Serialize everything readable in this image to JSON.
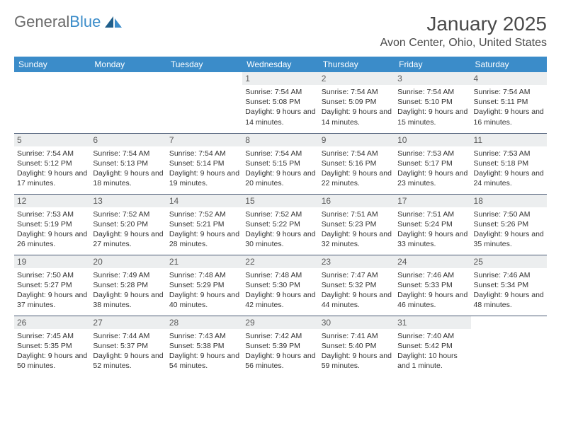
{
  "logo": {
    "textGray": "General",
    "textBlue": "Blue"
  },
  "title": "January 2025",
  "location": "Avon Center, Ohio, United States",
  "colors": {
    "headerBg": "#3b8cc9",
    "headerText": "#ffffff",
    "dayNumBg": "#eceeef",
    "cellText": "#333333",
    "borderColor": "#4a5a75",
    "logoGray": "#6b6b6b",
    "logoBlue": "#3b8cc9",
    "pageBg": "#ffffff"
  },
  "typography": {
    "titleFontSize": 28,
    "locationFontSize": 16,
    "weekdayFontSize": 12,
    "dayNumFontSize": 12,
    "cellFontSize": 10.5
  },
  "weekdays": [
    "Sunday",
    "Monday",
    "Tuesday",
    "Wednesday",
    "Thursday",
    "Friday",
    "Saturday"
  ],
  "weeks": [
    [
      null,
      null,
      null,
      {
        "n": "1",
        "sr": "7:54 AM",
        "ss": "5:08 PM",
        "dl": "9 hours and 14 minutes."
      },
      {
        "n": "2",
        "sr": "7:54 AM",
        "ss": "5:09 PM",
        "dl": "9 hours and 14 minutes."
      },
      {
        "n": "3",
        "sr": "7:54 AM",
        "ss": "5:10 PM",
        "dl": "9 hours and 15 minutes."
      },
      {
        "n": "4",
        "sr": "7:54 AM",
        "ss": "5:11 PM",
        "dl": "9 hours and 16 minutes."
      }
    ],
    [
      {
        "n": "5",
        "sr": "7:54 AM",
        "ss": "5:12 PM",
        "dl": "9 hours and 17 minutes."
      },
      {
        "n": "6",
        "sr": "7:54 AM",
        "ss": "5:13 PM",
        "dl": "9 hours and 18 minutes."
      },
      {
        "n": "7",
        "sr": "7:54 AM",
        "ss": "5:14 PM",
        "dl": "9 hours and 19 minutes."
      },
      {
        "n": "8",
        "sr": "7:54 AM",
        "ss": "5:15 PM",
        "dl": "9 hours and 20 minutes."
      },
      {
        "n": "9",
        "sr": "7:54 AM",
        "ss": "5:16 PM",
        "dl": "9 hours and 22 minutes."
      },
      {
        "n": "10",
        "sr": "7:53 AM",
        "ss": "5:17 PM",
        "dl": "9 hours and 23 minutes."
      },
      {
        "n": "11",
        "sr": "7:53 AM",
        "ss": "5:18 PM",
        "dl": "9 hours and 24 minutes."
      }
    ],
    [
      {
        "n": "12",
        "sr": "7:53 AM",
        "ss": "5:19 PM",
        "dl": "9 hours and 26 minutes."
      },
      {
        "n": "13",
        "sr": "7:52 AM",
        "ss": "5:20 PM",
        "dl": "9 hours and 27 minutes."
      },
      {
        "n": "14",
        "sr": "7:52 AM",
        "ss": "5:21 PM",
        "dl": "9 hours and 28 minutes."
      },
      {
        "n": "15",
        "sr": "7:52 AM",
        "ss": "5:22 PM",
        "dl": "9 hours and 30 minutes."
      },
      {
        "n": "16",
        "sr": "7:51 AM",
        "ss": "5:23 PM",
        "dl": "9 hours and 32 minutes."
      },
      {
        "n": "17",
        "sr": "7:51 AM",
        "ss": "5:24 PM",
        "dl": "9 hours and 33 minutes."
      },
      {
        "n": "18",
        "sr": "7:50 AM",
        "ss": "5:26 PM",
        "dl": "9 hours and 35 minutes."
      }
    ],
    [
      {
        "n": "19",
        "sr": "7:50 AM",
        "ss": "5:27 PM",
        "dl": "9 hours and 37 minutes."
      },
      {
        "n": "20",
        "sr": "7:49 AM",
        "ss": "5:28 PM",
        "dl": "9 hours and 38 minutes."
      },
      {
        "n": "21",
        "sr": "7:48 AM",
        "ss": "5:29 PM",
        "dl": "9 hours and 40 minutes."
      },
      {
        "n": "22",
        "sr": "7:48 AM",
        "ss": "5:30 PM",
        "dl": "9 hours and 42 minutes."
      },
      {
        "n": "23",
        "sr": "7:47 AM",
        "ss": "5:32 PM",
        "dl": "9 hours and 44 minutes."
      },
      {
        "n": "24",
        "sr": "7:46 AM",
        "ss": "5:33 PM",
        "dl": "9 hours and 46 minutes."
      },
      {
        "n": "25",
        "sr": "7:46 AM",
        "ss": "5:34 PM",
        "dl": "9 hours and 48 minutes."
      }
    ],
    [
      {
        "n": "26",
        "sr": "7:45 AM",
        "ss": "5:35 PM",
        "dl": "9 hours and 50 minutes."
      },
      {
        "n": "27",
        "sr": "7:44 AM",
        "ss": "5:37 PM",
        "dl": "9 hours and 52 minutes."
      },
      {
        "n": "28",
        "sr": "7:43 AM",
        "ss": "5:38 PM",
        "dl": "9 hours and 54 minutes."
      },
      {
        "n": "29",
        "sr": "7:42 AM",
        "ss": "5:39 PM",
        "dl": "9 hours and 56 minutes."
      },
      {
        "n": "30",
        "sr": "7:41 AM",
        "ss": "5:40 PM",
        "dl": "9 hours and 59 minutes."
      },
      {
        "n": "31",
        "sr": "7:40 AM",
        "ss": "5:42 PM",
        "dl": "10 hours and 1 minute."
      },
      null
    ]
  ],
  "labels": {
    "sunrise": "Sunrise:",
    "sunset": "Sunset:",
    "daylight": "Daylight:"
  }
}
